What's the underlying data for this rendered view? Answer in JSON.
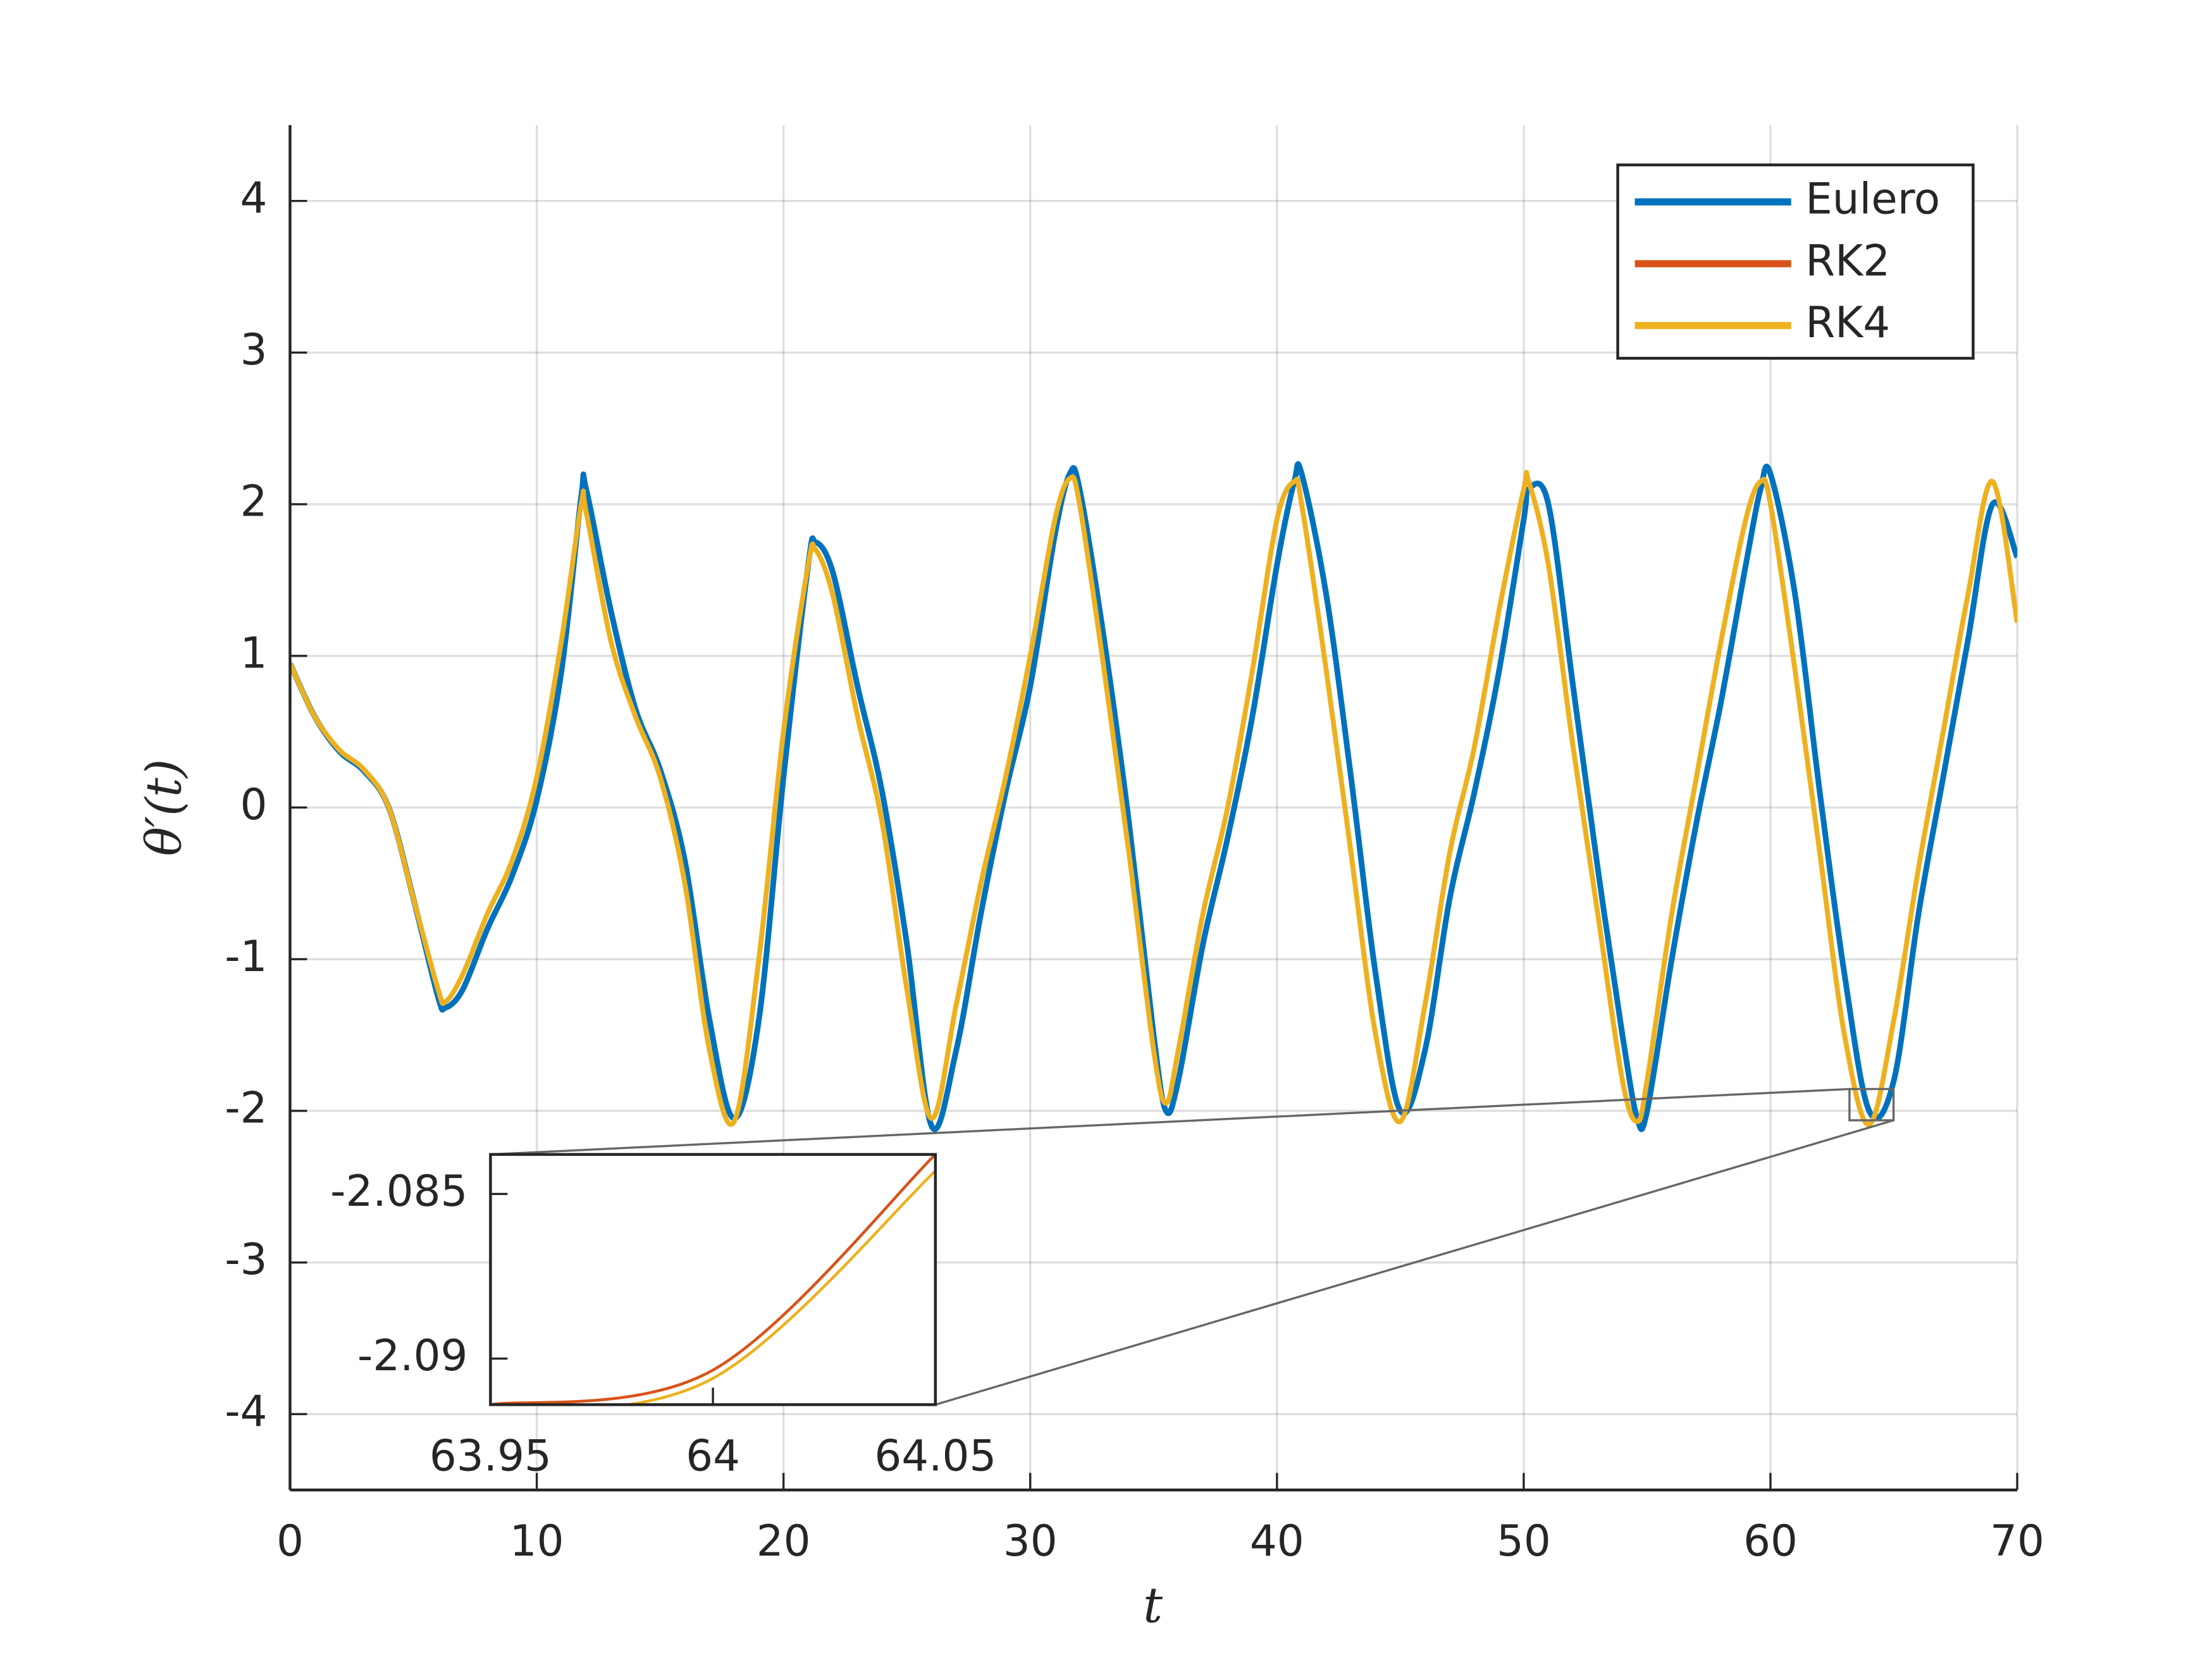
{
  "chart_data": [
    {
      "type": "line",
      "xlabel": "t",
      "ylabel": "θ′(t)",
      "x": [
        0,
        1,
        2,
        3,
        4,
        5,
        6,
        6.3,
        7,
        8,
        9,
        10,
        11,
        11.8,
        12,
        13,
        14,
        15,
        16,
        17,
        18,
        19,
        20,
        21,
        21.3,
        22,
        23,
        24,
        25,
        26,
        27,
        28,
        29,
        30,
        31,
        31.6,
        32,
        33,
        34,
        35,
        35.5,
        36,
        37,
        38,
        39,
        40,
        40.7,
        41,
        42,
        43,
        44,
        45,
        46,
        47,
        48,
        49,
        50,
        50.2,
        51,
        52,
        53,
        54,
        54.6,
        55,
        56,
        57,
        58,
        59,
        59.6,
        60,
        61,
        62,
        63,
        64,
        65,
        66,
        67,
        68,
        69,
        70
      ],
      "series": [
        {
          "name": "Eulero",
          "color": "#0072BD",
          "values": [
            0.95,
            0.6,
            0.37,
            0.24,
            0.0,
            -0.6,
            -1.25,
            -1.32,
            -1.2,
            -0.8,
            -0.45,
            0.05,
            0.9,
            2.05,
            2.1,
            1.3,
            0.65,
            0.25,
            -0.35,
            -1.4,
            -2.05,
            -1.4,
            0.2,
            1.6,
            1.75,
            1.55,
            0.8,
            0.1,
            -0.9,
            -2.1,
            -1.6,
            -0.7,
            0.1,
            0.8,
            1.8,
            2.2,
            2.1,
            1.1,
            -0.1,
            -1.5,
            -2.0,
            -1.8,
            -0.9,
            -0.2,
            0.6,
            1.6,
            2.15,
            2.2,
            1.4,
            0.2,
            -1.1,
            -2.0,
            -1.6,
            -0.6,
            0.1,
            0.9,
            1.9,
            2.1,
            2.0,
            0.8,
            -0.4,
            -1.5,
            -2.05,
            -2.0,
            -1.0,
            -0.1,
            0.7,
            1.6,
            2.1,
            2.2,
            1.4,
            0.1,
            -1.1,
            -2.0,
            -1.8,
            -0.7,
            0.2,
            1.1,
            2.0,
            1.65
          ]
        },
        {
          "name": "RK2",
          "color": "#D95319",
          "values": [
            0.95,
            0.6,
            0.38,
            0.25,
            0.0,
            -0.6,
            -1.2,
            -1.28,
            -1.1,
            -0.7,
            -0.35,
            0.2,
            1.1,
            2.0,
            1.95,
            1.1,
            0.6,
            0.2,
            -0.5,
            -1.6,
            -2.07,
            -1.0,
            0.5,
            1.6,
            1.7,
            1.4,
            0.6,
            -0.1,
            -1.2,
            -2.05,
            -1.3,
            -0.5,
            0.2,
            1.0,
            1.9,
            2.17,
            2.0,
            0.9,
            -0.3,
            -1.6,
            -1.95,
            -1.6,
            -0.7,
            0.0,
            0.9,
            1.9,
            2.15,
            2.0,
            0.9,
            -0.3,
            -1.5,
            -2.07,
            -1.3,
            -0.3,
            0.4,
            1.3,
            2.1,
            2.15,
            1.6,
            0.4,
            -0.7,
            -1.8,
            -2.07,
            -1.8,
            -0.7,
            0.2,
            1.1,
            1.9,
            2.15,
            2.0,
            0.9,
            -0.3,
            -1.5,
            -2.09,
            -1.4,
            -0.4,
            0.5,
            1.4,
            2.15,
            1.22
          ]
        },
        {
          "name": "RK4",
          "color": "#EDB120",
          "values": [
            0.95,
            0.6,
            0.38,
            0.25,
            0.0,
            -0.6,
            -1.2,
            -1.28,
            -1.1,
            -0.7,
            -0.35,
            0.2,
            1.1,
            2.0,
            1.95,
            1.1,
            0.6,
            0.2,
            -0.5,
            -1.6,
            -2.07,
            -1.0,
            0.5,
            1.6,
            1.7,
            1.4,
            0.6,
            -0.1,
            -1.2,
            -2.05,
            -1.3,
            -0.5,
            0.2,
            1.0,
            1.9,
            2.17,
            2.0,
            0.9,
            -0.3,
            -1.6,
            -1.95,
            -1.6,
            -0.7,
            0.0,
            0.9,
            1.9,
            2.15,
            2.0,
            0.9,
            -0.3,
            -1.5,
            -2.07,
            -1.3,
            -0.3,
            0.4,
            1.3,
            2.1,
            2.15,
            1.6,
            0.4,
            -0.7,
            -1.8,
            -2.07,
            -1.8,
            -0.7,
            0.2,
            1.1,
            1.9,
            2.15,
            2.0,
            0.9,
            -0.3,
            -1.5,
            -2.09,
            -1.4,
            -0.4,
            0.5,
            1.4,
            2.15,
            1.22
          ]
        }
      ],
      "xlim": [
        0,
        70
      ],
      "xticks": [
        0,
        10,
        20,
        30,
        40,
        50,
        60,
        70
      ],
      "ylim": [
        -4.5,
        4.5
      ],
      "yticks": [
        -4,
        -3,
        -2,
        -1,
        0,
        1,
        2,
        3,
        4
      ],
      "grid": true,
      "legend": "northeast"
    },
    {
      "type": "line",
      "x": [
        63.95,
        64,
        64.05
      ],
      "series": [
        {
          "color": "#D95319",
          "values": [
            -2.0914,
            -2.09035,
            -2.0838
          ]
        },
        {
          "color": "#EDB120",
          "values": [
            -2.0917,
            -2.0906,
            -2.0843
          ]
        }
      ],
      "xlim": [
        63.95,
        64.05
      ],
      "xticks": [
        63.95,
        64,
        64.05
      ],
      "ylim": [
        -2.0914,
        -2.0838
      ],
      "yticks": [
        -2.09,
        -2.085
      ],
      "grid": false
    }
  ]
}
